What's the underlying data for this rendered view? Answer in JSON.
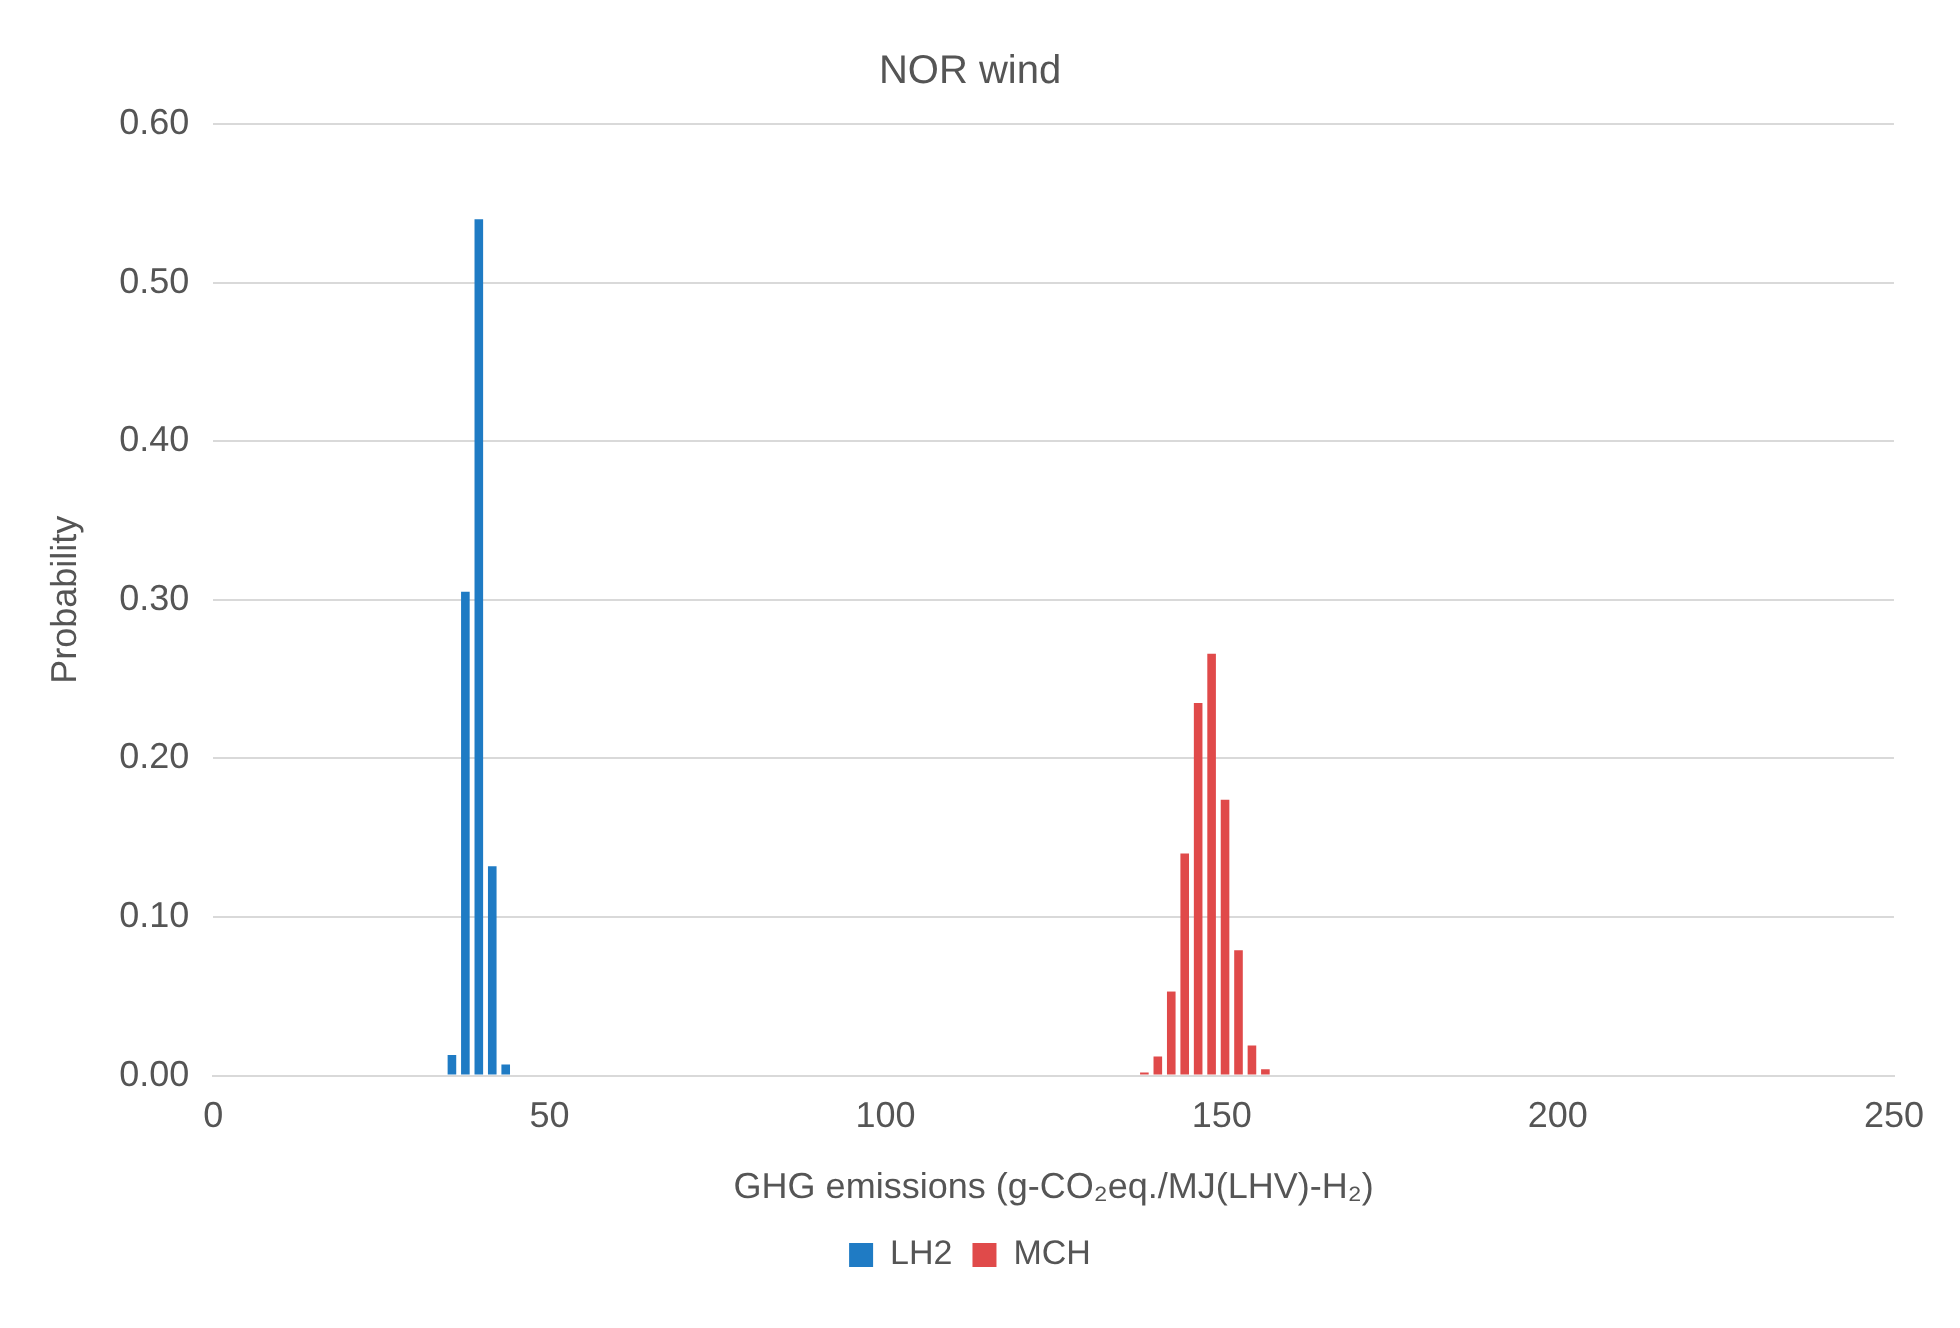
{
  "chart_data": {
    "type": "bar",
    "title": "NOR wind",
    "xlabel": "GHG emissions (g-CO₂eq./MJ(LHV)-H₂)",
    "ylabel": "Probability",
    "series": [
      {
        "name": "LH2",
        "color": "#1f7bc4",
        "x": [
          35.5,
          37.5,
          39.5,
          41.5,
          43.5
        ],
        "values": [
          0.013,
          0.305,
          0.54,
          0.132,
          0.007
        ]
      },
      {
        "name": "MCH",
        "color": "#e04a4a",
        "x": [
          138.5,
          140.5,
          142.5,
          144.5,
          146.5,
          148.5,
          150.5,
          152.5,
          154.5,
          156.5
        ],
        "values": [
          0.002,
          0.012,
          0.053,
          0.14,
          0.235,
          0.266,
          0.174,
          0.079,
          0.019,
          0.004
        ]
      }
    ],
    "xlim": [
      0,
      250
    ],
    "xticks": [
      0,
      50,
      100,
      150,
      200,
      250
    ],
    "ylim": [
      0,
      0.6
    ],
    "yticks": [
      {
        "value": 0,
        "label": "0.00"
      },
      {
        "value": 0.1,
        "label": "0.10"
      },
      {
        "value": 0.2,
        "label": "0.20"
      },
      {
        "value": 0.3,
        "label": "0.30"
      },
      {
        "value": 0.4,
        "label": "0.40"
      },
      {
        "value": 0.5,
        "label": "0.50"
      },
      {
        "value": 0.6,
        "label": "0.60"
      }
    ],
    "grid": "y",
    "legend": "bottom"
  }
}
